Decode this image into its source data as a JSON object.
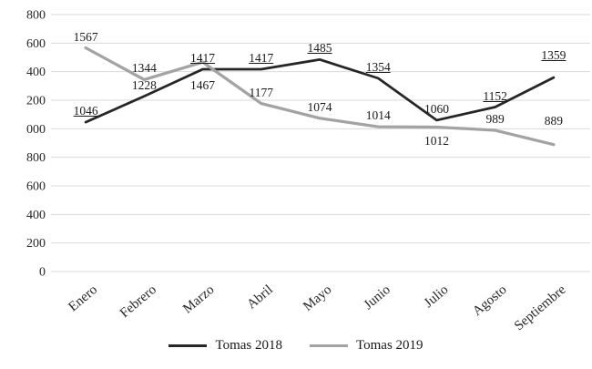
{
  "chart_data": {
    "type": "line",
    "title": "",
    "categories": [
      "Enero",
      "Febrero",
      "Marzo",
      "Abril",
      "Mayo",
      "Junio",
      "Julio",
      "Agosto",
      "Septiembre"
    ],
    "series": [
      {
        "name": "Tomas 2018",
        "color": "#262626",
        "line_width": 2.75,
        "values": [
          1046,
          1228,
          1417,
          1417,
          1485,
          1354,
          1060,
          1152,
          1359
        ],
        "labels_underlined": [
          true,
          false,
          true,
          true,
          true,
          true,
          false,
          true,
          true
        ],
        "label_side": [
          "above",
          "above",
          "above",
          "above",
          "above",
          "above",
          "above",
          "above",
          "above"
        ],
        "label_dy": [
          0,
          0,
          0,
          0,
          0,
          0,
          0,
          0,
          -12
        ]
      },
      {
        "name": "Tomas 2019",
        "color": "#a3a3a3",
        "line_width": 3.25,
        "values": [
          1567,
          1344,
          1467,
          1177,
          1074,
          1014,
          1012,
          989,
          889
        ],
        "labels_underlined": [
          false,
          false,
          false,
          false,
          false,
          false,
          false,
          false,
          false
        ],
        "label_side": [
          "above",
          "above",
          "below",
          "above",
          "above",
          "above",
          "below",
          "above",
          "above"
        ],
        "label_dy": [
          0,
          0,
          12,
          0,
          0,
          0,
          2,
          0,
          -14
        ]
      }
    ],
    "y_axis": {
      "min": 0,
      "max": 1800,
      "step": 200,
      "tick_labels_top_to_bottom": [
        "800",
        "600",
        "400",
        "200",
        "000",
        "800",
        "600",
        "400",
        "200",
        "0"
      ]
    },
    "x_label_rotation_deg": -40,
    "grid": true,
    "gridline_color": "#d9d9d9",
    "legend_position": "bottom",
    "legend": [
      "Tomas 2018",
      "Tomas 2019"
    ]
  }
}
